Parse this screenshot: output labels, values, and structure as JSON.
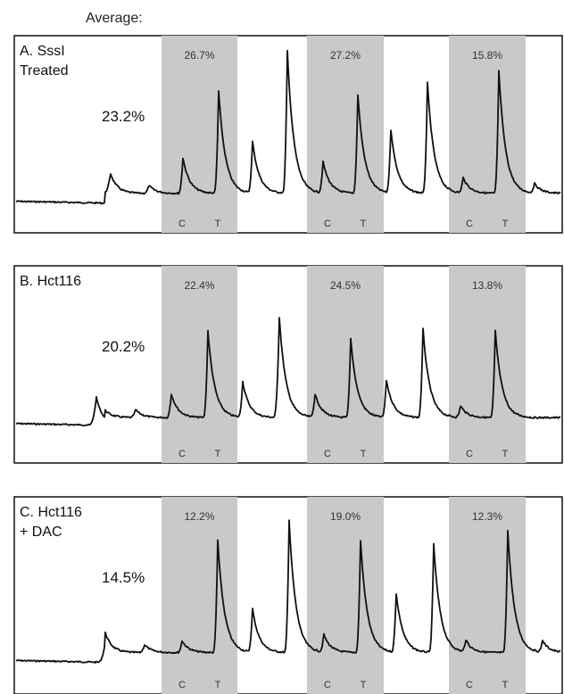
{
  "header": {
    "average_label": "Average:"
  },
  "chart_data": [
    {
      "type": "line",
      "label_lines": [
        "A. SssI",
        "Treated"
      ],
      "average": "23.2%",
      "windows": [
        {
          "percent": "26.7%",
          "c_label": "C",
          "t_label": "T"
        },
        {
          "percent": "27.2%",
          "c_label": "C",
          "t_label": "T"
        },
        {
          "percent": "15.8%",
          "c_label": "C",
          "t_label": "T"
        }
      ]
    },
    {
      "type": "line",
      "label_lines": [
        "B. Hct116"
      ],
      "average": "20.2%",
      "windows": [
        {
          "percent": "22.4%",
          "c_label": "C",
          "t_label": "T"
        },
        {
          "percent": "24.5%",
          "c_label": "C",
          "t_label": "T"
        },
        {
          "percent": "13.8%",
          "c_label": "C",
          "t_label": "T"
        }
      ]
    },
    {
      "type": "line",
      "label_lines": [
        "C. Hct116",
        "+ DAC"
      ],
      "average": "14.5%",
      "windows": [
        {
          "percent": "12.2%",
          "c_label": "C",
          "t_label": "T"
        },
        {
          "percent": "19.0%",
          "c_label": "C",
          "t_label": "T"
        },
        {
          "percent": "12.3%",
          "c_label": "C",
          "t_label": "T"
        }
      ]
    }
  ]
}
